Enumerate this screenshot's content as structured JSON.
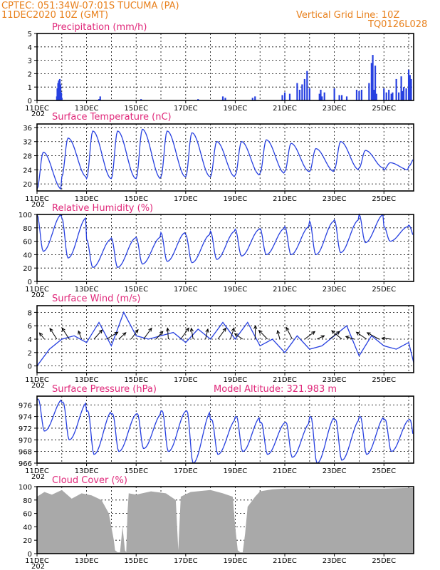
{
  "header": {
    "station": "CPTEC:   051:34W-07:01S   TUCUMA (PA)",
    "datetime": "11DEC2020 10Z (GMT)",
    "grid_note": "Vertical Grid Line: 10Z",
    "code": "TQ0126L028",
    "year_stub": "202"
  },
  "colors": {
    "series": "#2740e0",
    "cloud": "#a9a9a9",
    "title": "#e0287a",
    "header": "#e8801c"
  },
  "chart_data": [
    {
      "id": "precip",
      "type": "bar",
      "title": "Precipitation (mm/h)",
      "x_ticks": [
        "11DEC",
        "13DEC",
        "15DEC",
        "17DEC",
        "19DEC",
        "21DEC",
        "23DEC",
        "25DEC"
      ],
      "ylim": [
        0,
        5
      ],
      "y_ticks": [
        "0",
        "1",
        "2",
        "3",
        "4",
        "5"
      ],
      "x_range_days": [
        0,
        15.2
      ],
      "x": [
        0.8,
        0.82,
        0.85,
        0.88,
        0.92,
        0.95,
        0.98,
        1.0,
        2.5,
        2.55,
        4.2,
        6.5,
        7.5,
        7.6,
        8.7,
        8.8,
        9.9,
        10.0,
        10.2,
        10.5,
        10.6,
        10.7,
        10.8,
        10.9,
        11.0,
        11.4,
        11.45,
        11.5,
        11.6,
        12.0,
        12.2,
        12.3,
        12.5,
        12.9,
        13.0,
        13.1,
        13.4,
        13.5,
        13.55,
        13.6,
        13.65,
        13.7,
        14.0,
        14.1,
        14.2,
        14.3,
        14.35,
        14.5,
        14.6,
        14.7,
        14.75,
        14.8,
        14.9,
        15.0,
        15.05,
        15.1
      ],
      "values": [
        0.3,
        0.9,
        1.3,
        1.5,
        1.6,
        1.2,
        0.6,
        0.2,
        0.1,
        0.3,
        0.1,
        0.1,
        0.3,
        0.2,
        0.2,
        0.3,
        0.4,
        0.6,
        0.5,
        1.3,
        0.8,
        1.2,
        1.6,
        2.2,
        0.9,
        0.5,
        0.8,
        0.3,
        0.6,
        0.9,
        0.4,
        0.4,
        0.3,
        0.8,
        0.7,
        0.8,
        1.3,
        2.8,
        3.4,
        0.8,
        2.6,
        0.5,
        0.9,
        0.6,
        0.8,
        0.5,
        0.6,
        1.6,
        0.6,
        1.8,
        0.7,
        1.0,
        0.9,
        2.3,
        1.9,
        1.6
      ]
    },
    {
      "id": "temp",
      "type": "line",
      "title": "Surface Temperature (nC)",
      "x_ticks": [
        "11DEC",
        "13DEC",
        "15DEC",
        "17DEC",
        "19DEC",
        "21DEC",
        "23DEC",
        "25DEC"
      ],
      "ylim": [
        18,
        37
      ],
      "y_ticks": [
        "20",
        "24",
        "28",
        "32",
        "36"
      ],
      "daily_min": [
        18.5,
        22,
        21.5,
        21.5,
        21.5,
        22,
        22,
        22,
        22.5,
        23,
        23.5,
        23.5,
        24,
        24.5,
        24,
        25
      ],
      "daily_max": [
        29,
        33,
        35,
        35,
        35.5,
        35,
        34.5,
        32,
        32,
        32.5,
        31.5,
        30,
        32,
        29.5,
        26,
        27.5
      ]
    },
    {
      "id": "rh",
      "type": "line",
      "title": "Relative Humidity (%)",
      "x_ticks": [
        "11DEC",
        "13DEC",
        "15DEC",
        "17DEC",
        "19DEC",
        "21DEC",
        "23DEC",
        "25DEC"
      ],
      "ylim": [
        0,
        100
      ],
      "y_ticks": [
        "0",
        "20",
        "40",
        "60",
        "80",
        "100"
      ],
      "daily_min": [
        45,
        35,
        21,
        21,
        26,
        30,
        28,
        33,
        38,
        40,
        40,
        40,
        43,
        58,
        60,
        65
      ],
      "daily_max": [
        100,
        95,
        63,
        65,
        66,
        73,
        70,
        75,
        78,
        79,
        82,
        90,
        92,
        100,
        82,
        84
      ]
    },
    {
      "id": "wind",
      "type": "line",
      "title": "Surface Wind (m/s)",
      "x_ticks": [
        "11DEC",
        "13DEC",
        "15DEC",
        "17DEC",
        "19DEC",
        "21DEC",
        "23DEC",
        "25DEC"
      ],
      "ylim": [
        -1,
        9
      ],
      "y_ticks": [
        "0",
        "2",
        "4",
        "6",
        "8"
      ],
      "x": [
        0,
        0.5,
        1,
        1.5,
        2,
        2.5,
        3,
        3.5,
        4,
        4.5,
        5,
        5.5,
        6,
        6.5,
        7,
        7.5,
        8,
        8.5,
        9,
        9.5,
        10,
        10.5,
        11,
        11.5,
        12,
        12.5,
        13,
        13.5,
        14,
        14.5,
        15,
        15.2
      ],
      "values": [
        0,
        2.5,
        4,
        4.5,
        3.5,
        6.5,
        3,
        8,
        4.5,
        4,
        4.5,
        5,
        3.5,
        5.5,
        4,
        6.5,
        4,
        6.5,
        3,
        4,
        2,
        4.5,
        2.5,
        3,
        4.5,
        6,
        1.5,
        4.5,
        3,
        2.5,
        3.5,
        0.5
      ]
    },
    {
      "id": "pressure",
      "type": "line",
      "title": "Surface Pressure (hPa)",
      "model_altitude": "Model Altitude: 321.983 m",
      "x_ticks": [
        "11DEC",
        "13DEC",
        "15DEC",
        "17DEC",
        "19DEC",
        "21DEC",
        "23DEC",
        "25DEC"
      ],
      "ylim": [
        966,
        977.5
      ],
      "y_ticks": [
        "966",
        "968",
        "970",
        "972",
        "974",
        "976"
      ],
      "daily_min": [
        971.5,
        970,
        967.5,
        968,
        968.5,
        968,
        966,
        967.5,
        968,
        967.5,
        967,
        966,
        966.5,
        967.5,
        968
      ],
      "daily_max": [
        977,
        976.5,
        975,
        974.5,
        974.5,
        975,
        975,
        973.5,
        974,
        973,
        973,
        974,
        973.5,
        974,
        973.5
      ]
    },
    {
      "id": "cloud",
      "type": "area",
      "title": "Cloud Cover (%)",
      "x_ticks": [
        "11DEC",
        "13DEC",
        "15DEC",
        "17DEC",
        "19DEC",
        "21DEC",
        "23DEC",
        "25DEC"
      ],
      "ylim": [
        0,
        100
      ],
      "y_ticks": [
        "0",
        "20",
        "40",
        "60",
        "80",
        "100"
      ],
      "x": [
        0,
        0.3,
        0.6,
        1.0,
        1.4,
        1.8,
        2.2,
        2.6,
        2.9,
        3.0,
        3.1,
        3.15,
        3.25,
        3.35,
        3.45,
        3.55,
        3.6,
        3.65,
        3.7,
        4.0,
        4.6,
        5.2,
        5.6,
        5.7,
        5.8,
        6.2,
        7.0,
        7.5,
        7.9,
        8.0,
        8.1,
        8.2,
        8.3,
        8.4,
        8.5,
        8.8,
        9.0,
        9.5,
        10,
        11,
        12,
        13,
        14,
        15,
        15.2
      ],
      "values": [
        85,
        92,
        88,
        95,
        82,
        90,
        87,
        80,
        60,
        40,
        20,
        5,
        2,
        2,
        40,
        5,
        2,
        60,
        90,
        88,
        93,
        90,
        80,
        5,
        85,
        92,
        95,
        90,
        85,
        40,
        5,
        2,
        2,
        30,
        70,
        85,
        93,
        96,
        97,
        97,
        97,
        97,
        97,
        98,
        98
      ]
    }
  ]
}
